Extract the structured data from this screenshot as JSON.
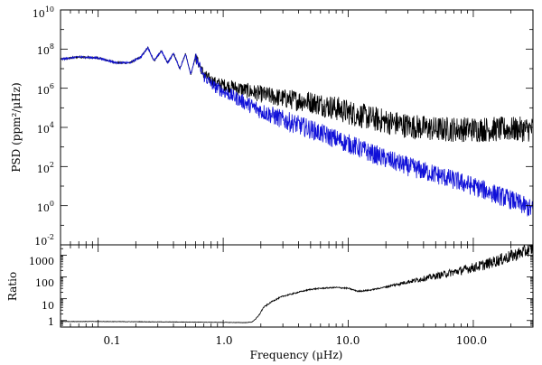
{
  "chart_data": [
    {
      "type": "line",
      "panel": "top",
      "xlabel": "Frequency (μHz)",
      "ylabel": "PSD (ppm²/μHz)",
      "xscale": "log",
      "yscale": "log",
      "xlim": [
        0.05,
        300
      ],
      "ylim": [
        0.01,
        10000000000
      ],
      "x_ticks": [
        "0.1",
        "1.0",
        "10.0",
        "100.0"
      ],
      "y_ticks": [
        {
          "base": "10",
          "exp": "-2"
        },
        {
          "base": "10",
          "exp": "0"
        },
        {
          "base": "10",
          "exp": "2"
        },
        {
          "base": "10",
          "exp": "4"
        },
        {
          "base": "10",
          "exp": "6"
        },
        {
          "base": "10",
          "exp": "8"
        },
        {
          "base": "10",
          "exp": "10"
        }
      ],
      "grid": false,
      "series": [
        {
          "name": "black",
          "color": "#000000",
          "x": [
            0.05,
            0.07,
            0.1,
            0.14,
            0.18,
            0.22,
            0.25,
            0.28,
            0.32,
            0.36,
            0.4,
            0.45,
            0.5,
            0.55,
            0.6,
            0.7,
            0.85,
            1.0,
            1.5,
            2.0,
            3.0,
            5.0,
            7.0,
            10.0,
            15.0,
            20.0,
            30.0,
            50.0,
            100.0,
            200.0,
            300.0
          ],
          "values": [
            30000000,
            40000000,
            35000000,
            20000000,
            20000000,
            40000000,
            120000000,
            25000000,
            80000000,
            20000000,
            60000000,
            10000000,
            60000000,
            5000000,
            40000000,
            5000000,
            2000000,
            1500000,
            800000,
            500000,
            300000,
            200000,
            120000,
            60000,
            30000,
            20000,
            12000,
            8000,
            8000,
            8000,
            8000
          ]
        },
        {
          "name": "blue",
          "color": "#1010d8",
          "x": [
            0.05,
            0.07,
            0.1,
            0.14,
            0.18,
            0.22,
            0.25,
            0.28,
            0.32,
            0.36,
            0.4,
            0.45,
            0.5,
            0.55,
            0.6,
            0.7,
            0.85,
            1.0,
            1.5,
            2.0,
            3.0,
            5.0,
            7.0,
            10.0,
            15.0,
            20.0,
            30.0,
            50.0,
            100.0,
            200.0,
            300.0
          ],
          "values": [
            30000000,
            40000000,
            35000000,
            20000000,
            20000000,
            40000000,
            120000000,
            25000000,
            80000000,
            20000000,
            60000000,
            10000000,
            60000000,
            5000000,
            40000000,
            4000000,
            1200000,
            700000,
            180000,
            70000,
            25000,
            8000,
            3500,
            1500,
            500,
            250,
            100,
            40,
            10,
            2,
            0.6
          ]
        }
      ]
    },
    {
      "type": "line",
      "panel": "bottom",
      "xlabel": "Frequency (μHz)",
      "ylabel": "Ratio",
      "xscale": "log",
      "yscale": "log",
      "xlim": [
        0.05,
        300
      ],
      "ylim": [
        0.5,
        3000
      ],
      "x_ticks": [
        "0.1",
        "1.0",
        "10.0",
        "100.0"
      ],
      "y_ticks": [
        "1",
        "10",
        "100",
        "1000"
      ],
      "grid": false,
      "series": [
        {
          "name": "ratio",
          "color": "#000000",
          "x": [
            0.05,
            0.1,
            0.5,
            1.0,
            1.5,
            1.7,
            1.9,
            2.1,
            2.5,
            3.0,
            4.0,
            5.0,
            6.0,
            8.0,
            10.0,
            12.0,
            15.0,
            20.0,
            30.0,
            50.0,
            80.0,
            120.0,
            200.0,
            300.0
          ],
          "values": [
            0.9,
            0.9,
            0.85,
            0.82,
            0.8,
            0.85,
            1.5,
            4.0,
            8.0,
            13.0,
            20.0,
            27.0,
            30.0,
            33.0,
            30.0,
            22.0,
            25.0,
            35.0,
            60.0,
            110.0,
            200.0,
            350.0,
            900.0,
            2000.0
          ]
        }
      ]
    }
  ]
}
